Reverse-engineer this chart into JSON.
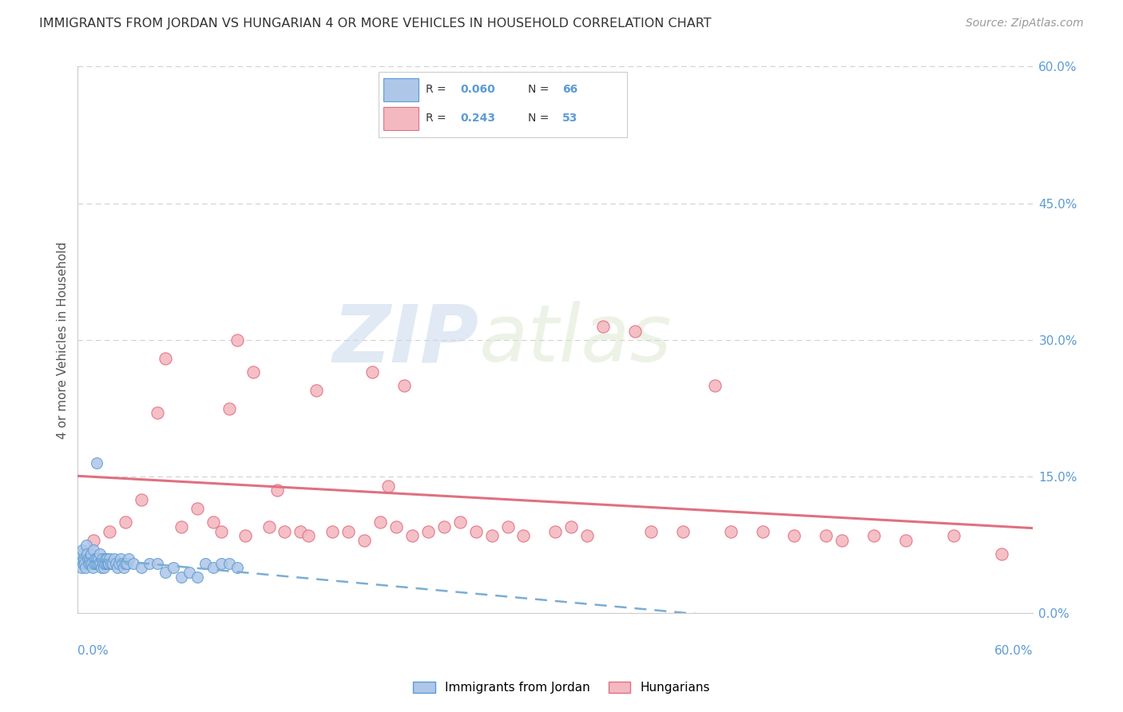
{
  "title": "IMMIGRANTS FROM JORDAN VS HUNGARIAN 4 OR MORE VEHICLES IN HOUSEHOLD CORRELATION CHART",
  "source": "Source: ZipAtlas.com",
  "ylabel": "4 or more Vehicles in Household",
  "xmin": 0.0,
  "xmax": 60.0,
  "ymin": 0.0,
  "ymax": 60.0,
  "ytick_vals": [
    0.0,
    15.0,
    30.0,
    45.0,
    60.0
  ],
  "jordan_color": "#aec6e8",
  "jordan_edge_color": "#5b9bd5",
  "hungarian_color": "#f4b8c1",
  "hungarian_edge_color": "#e07080",
  "jordan_R": 0.06,
  "jordan_N": 66,
  "hungarian_R": 0.243,
  "hungarian_N": 53,
  "jordan_trend_color": "#7aadd4",
  "hungarian_trend_color": "#e07080",
  "watermark_zip": "ZIP",
  "watermark_atlas": "atlas",
  "jordan_points_x": [
    0.1,
    0.15,
    0.2,
    0.25,
    0.3,
    0.35,
    0.4,
    0.45,
    0.5,
    0.55,
    0.6,
    0.65,
    0.7,
    0.75,
    0.8,
    0.85,
    0.9,
    0.95,
    1.0,
    1.05,
    1.1,
    1.15,
    1.2,
    1.25,
    1.3,
    1.35,
    1.4,
    1.45,
    1.5,
    1.55,
    1.6,
    1.65,
    1.7,
    1.75,
    1.8,
    1.85,
    1.9,
    1.95,
    2.0,
    2.1,
    2.2,
    2.3,
    2.4,
    2.5,
    2.6,
    2.7,
    2.8,
    2.9,
    3.0,
    3.1,
    3.2,
    3.5,
    4.0,
    4.5,
    5.0,
    5.5,
    6.0,
    6.5,
    7.0,
    7.5,
    8.0,
    8.5,
    9.0,
    9.5,
    10.0,
    1.2
  ],
  "jordan_points_y": [
    5.5,
    6.0,
    6.5,
    5.0,
    7.0,
    5.5,
    6.0,
    5.5,
    5.0,
    7.5,
    6.5,
    6.0,
    5.5,
    6.0,
    5.5,
    6.5,
    5.5,
    5.0,
    7.0,
    5.5,
    6.0,
    5.5,
    6.0,
    5.5,
    6.0,
    5.5,
    6.5,
    5.5,
    5.0,
    6.0,
    5.5,
    5.0,
    5.5,
    6.0,
    5.5,
    6.0,
    5.5,
    5.5,
    6.0,
    5.5,
    5.5,
    6.0,
    5.5,
    5.0,
    5.5,
    6.0,
    5.5,
    5.0,
    5.5,
    5.5,
    6.0,
    5.5,
    5.0,
    5.5,
    5.5,
    4.5,
    5.0,
    4.0,
    4.5,
    4.0,
    5.5,
    5.0,
    5.5,
    5.5,
    5.0,
    16.5
  ],
  "hungarian_points_x": [
    1.0,
    2.0,
    3.0,
    4.0,
    5.0,
    5.5,
    6.5,
    7.5,
    8.5,
    9.0,
    9.5,
    10.0,
    10.5,
    11.0,
    12.0,
    12.5,
    13.0,
    14.0,
    14.5,
    15.0,
    16.0,
    17.0,
    18.0,
    18.5,
    19.0,
    19.5,
    20.0,
    20.5,
    21.0,
    22.0,
    23.0,
    24.0,
    25.0,
    26.0,
    27.0,
    28.0,
    30.0,
    31.0,
    32.0,
    33.0,
    35.0,
    36.0,
    38.0,
    40.0,
    41.0,
    43.0,
    45.0,
    47.0,
    48.0,
    50.0,
    52.0,
    55.0,
    58.0
  ],
  "hungarian_points_y": [
    8.0,
    9.0,
    10.0,
    12.5,
    22.0,
    28.0,
    9.5,
    11.5,
    10.0,
    9.0,
    22.5,
    30.0,
    8.5,
    26.5,
    9.5,
    13.5,
    9.0,
    9.0,
    8.5,
    24.5,
    9.0,
    9.0,
    8.0,
    26.5,
    10.0,
    14.0,
    9.5,
    25.0,
    8.5,
    9.0,
    9.5,
    10.0,
    9.0,
    8.5,
    9.5,
    8.5,
    9.0,
    9.5,
    8.5,
    31.5,
    31.0,
    9.0,
    9.0,
    25.0,
    9.0,
    9.0,
    8.5,
    8.5,
    8.0,
    8.5,
    8.0,
    8.5,
    6.5
  ]
}
